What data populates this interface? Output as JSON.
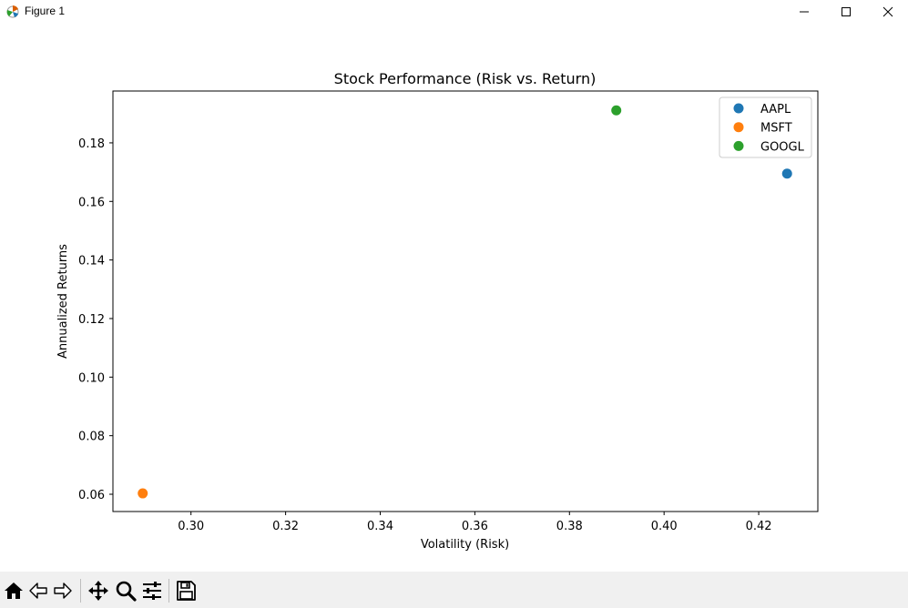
{
  "window": {
    "title": "Figure 1",
    "icons": [
      "matplotlib-figure-icon",
      "minimize-icon",
      "maximize-icon",
      "close-icon"
    ]
  },
  "toolbar": {
    "buttons": [
      "home-icon",
      "back-arrow-icon",
      "forward-arrow-icon",
      "pan-move-icon",
      "zoom-magnifier-icon",
      "configure-subplots-icon",
      "save-floppy-icon"
    ]
  },
  "chart_data": {
    "type": "scatter",
    "title": "Stock Performance (Risk vs. Return)",
    "xlabel": "Volatility (Risk)",
    "ylabel": "Annualized Returns",
    "xlim": [
      0.2835,
      0.4325
    ],
    "ylim": [
      0.0541,
      0.1977
    ],
    "xticks": [
      "0.30",
      "0.32",
      "0.34",
      "0.36",
      "0.38",
      "0.40",
      "0.42"
    ],
    "yticks": [
      "0.06",
      "0.08",
      "0.10",
      "0.12",
      "0.14",
      "0.16",
      "0.18"
    ],
    "grid": false,
    "legend_position": "upper right",
    "series": [
      {
        "name": "AAPL",
        "color": "#1f77b4",
        "x": [
          0.426
        ],
        "y": [
          0.1695
        ]
      },
      {
        "name": "MSFT",
        "color": "#ff7f0e",
        "x": [
          0.2898
        ],
        "y": [
          0.0603
        ]
      },
      {
        "name": "GOOGL",
        "color": "#2ca02c",
        "x": [
          0.3899
        ],
        "y": [
          0.1911
        ]
      }
    ]
  }
}
